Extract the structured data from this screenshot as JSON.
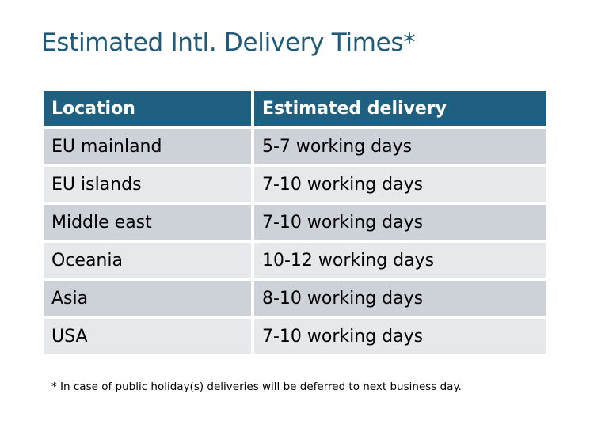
{
  "title": "Estimated Intl. Delivery Times*",
  "table": {
    "headers": [
      "Location",
      "Estimated delivery"
    ],
    "rows": [
      [
        "EU mainland",
        "5-7 working days"
      ],
      [
        "EU islands",
        "7-10 working days"
      ],
      [
        "Middle east",
        "7-10 working days"
      ],
      [
        "Oceania",
        "10-12 working days"
      ],
      [
        "Asia",
        "8-10 working days"
      ],
      [
        "USA",
        "7-10 working days"
      ]
    ]
  },
  "footnote": "* In case of public holiday(s) deliveries will be deferred to next business day.",
  "colors": {
    "header": "#1f6080",
    "title": "#1f5a7a",
    "row_odd": "#cdd1d8",
    "row_even": "#e6e8eb"
  }
}
